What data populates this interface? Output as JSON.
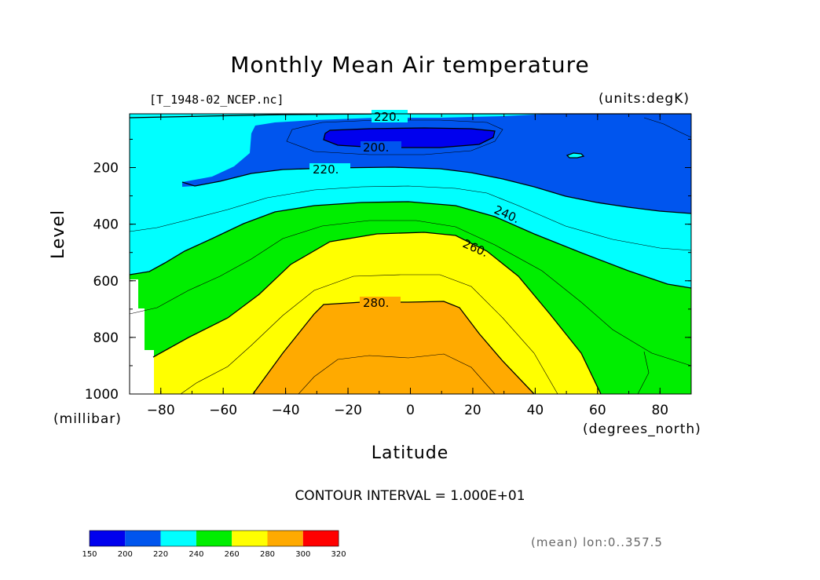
{
  "title": "Monthly Mean Air temperature",
  "file_label": "[T_1948-02_NCEP.nc]",
  "units_label": "(units:degK)",
  "contour_interval": "CONTOUR INTERVAL = 1.000E+01",
  "mean_note": "(mean) lon:0..357.5",
  "colors": {
    "band_150_200": "#0000ee",
    "band_200_220": "#0055ee",
    "band_220_240": "#00ffff",
    "band_240_260": "#00ee00",
    "band_260_280": "#ffff00",
    "band_280_300": "#ffaa00",
    "band_300_320": "#ff0000"
  },
  "chart_data": {
    "type": "heatmap",
    "title": "Monthly Mean Air temperature",
    "xlabel": "Latitude",
    "xunits": "(degrees_north)",
    "ylabel": "Level",
    "yunits": "(millibar)",
    "xlim": [
      -90,
      90
    ],
    "ylim": [
      1000,
      10
    ],
    "x_ticks": [
      "-80",
      "-60",
      "-40",
      "-20",
      "0",
      "20",
      "40",
      "60",
      "80"
    ],
    "y_ticks": [
      "200",
      "400",
      "600",
      "800",
      "1000"
    ],
    "contour_labels": [
      "220.",
      "200.",
      "220.",
      "240.",
      "260.",
      "280."
    ],
    "colorbar": {
      "levels": [
        "150",
        "200",
        "220",
        "240",
        "260",
        "280",
        "300",
        "320"
      ]
    }
  }
}
